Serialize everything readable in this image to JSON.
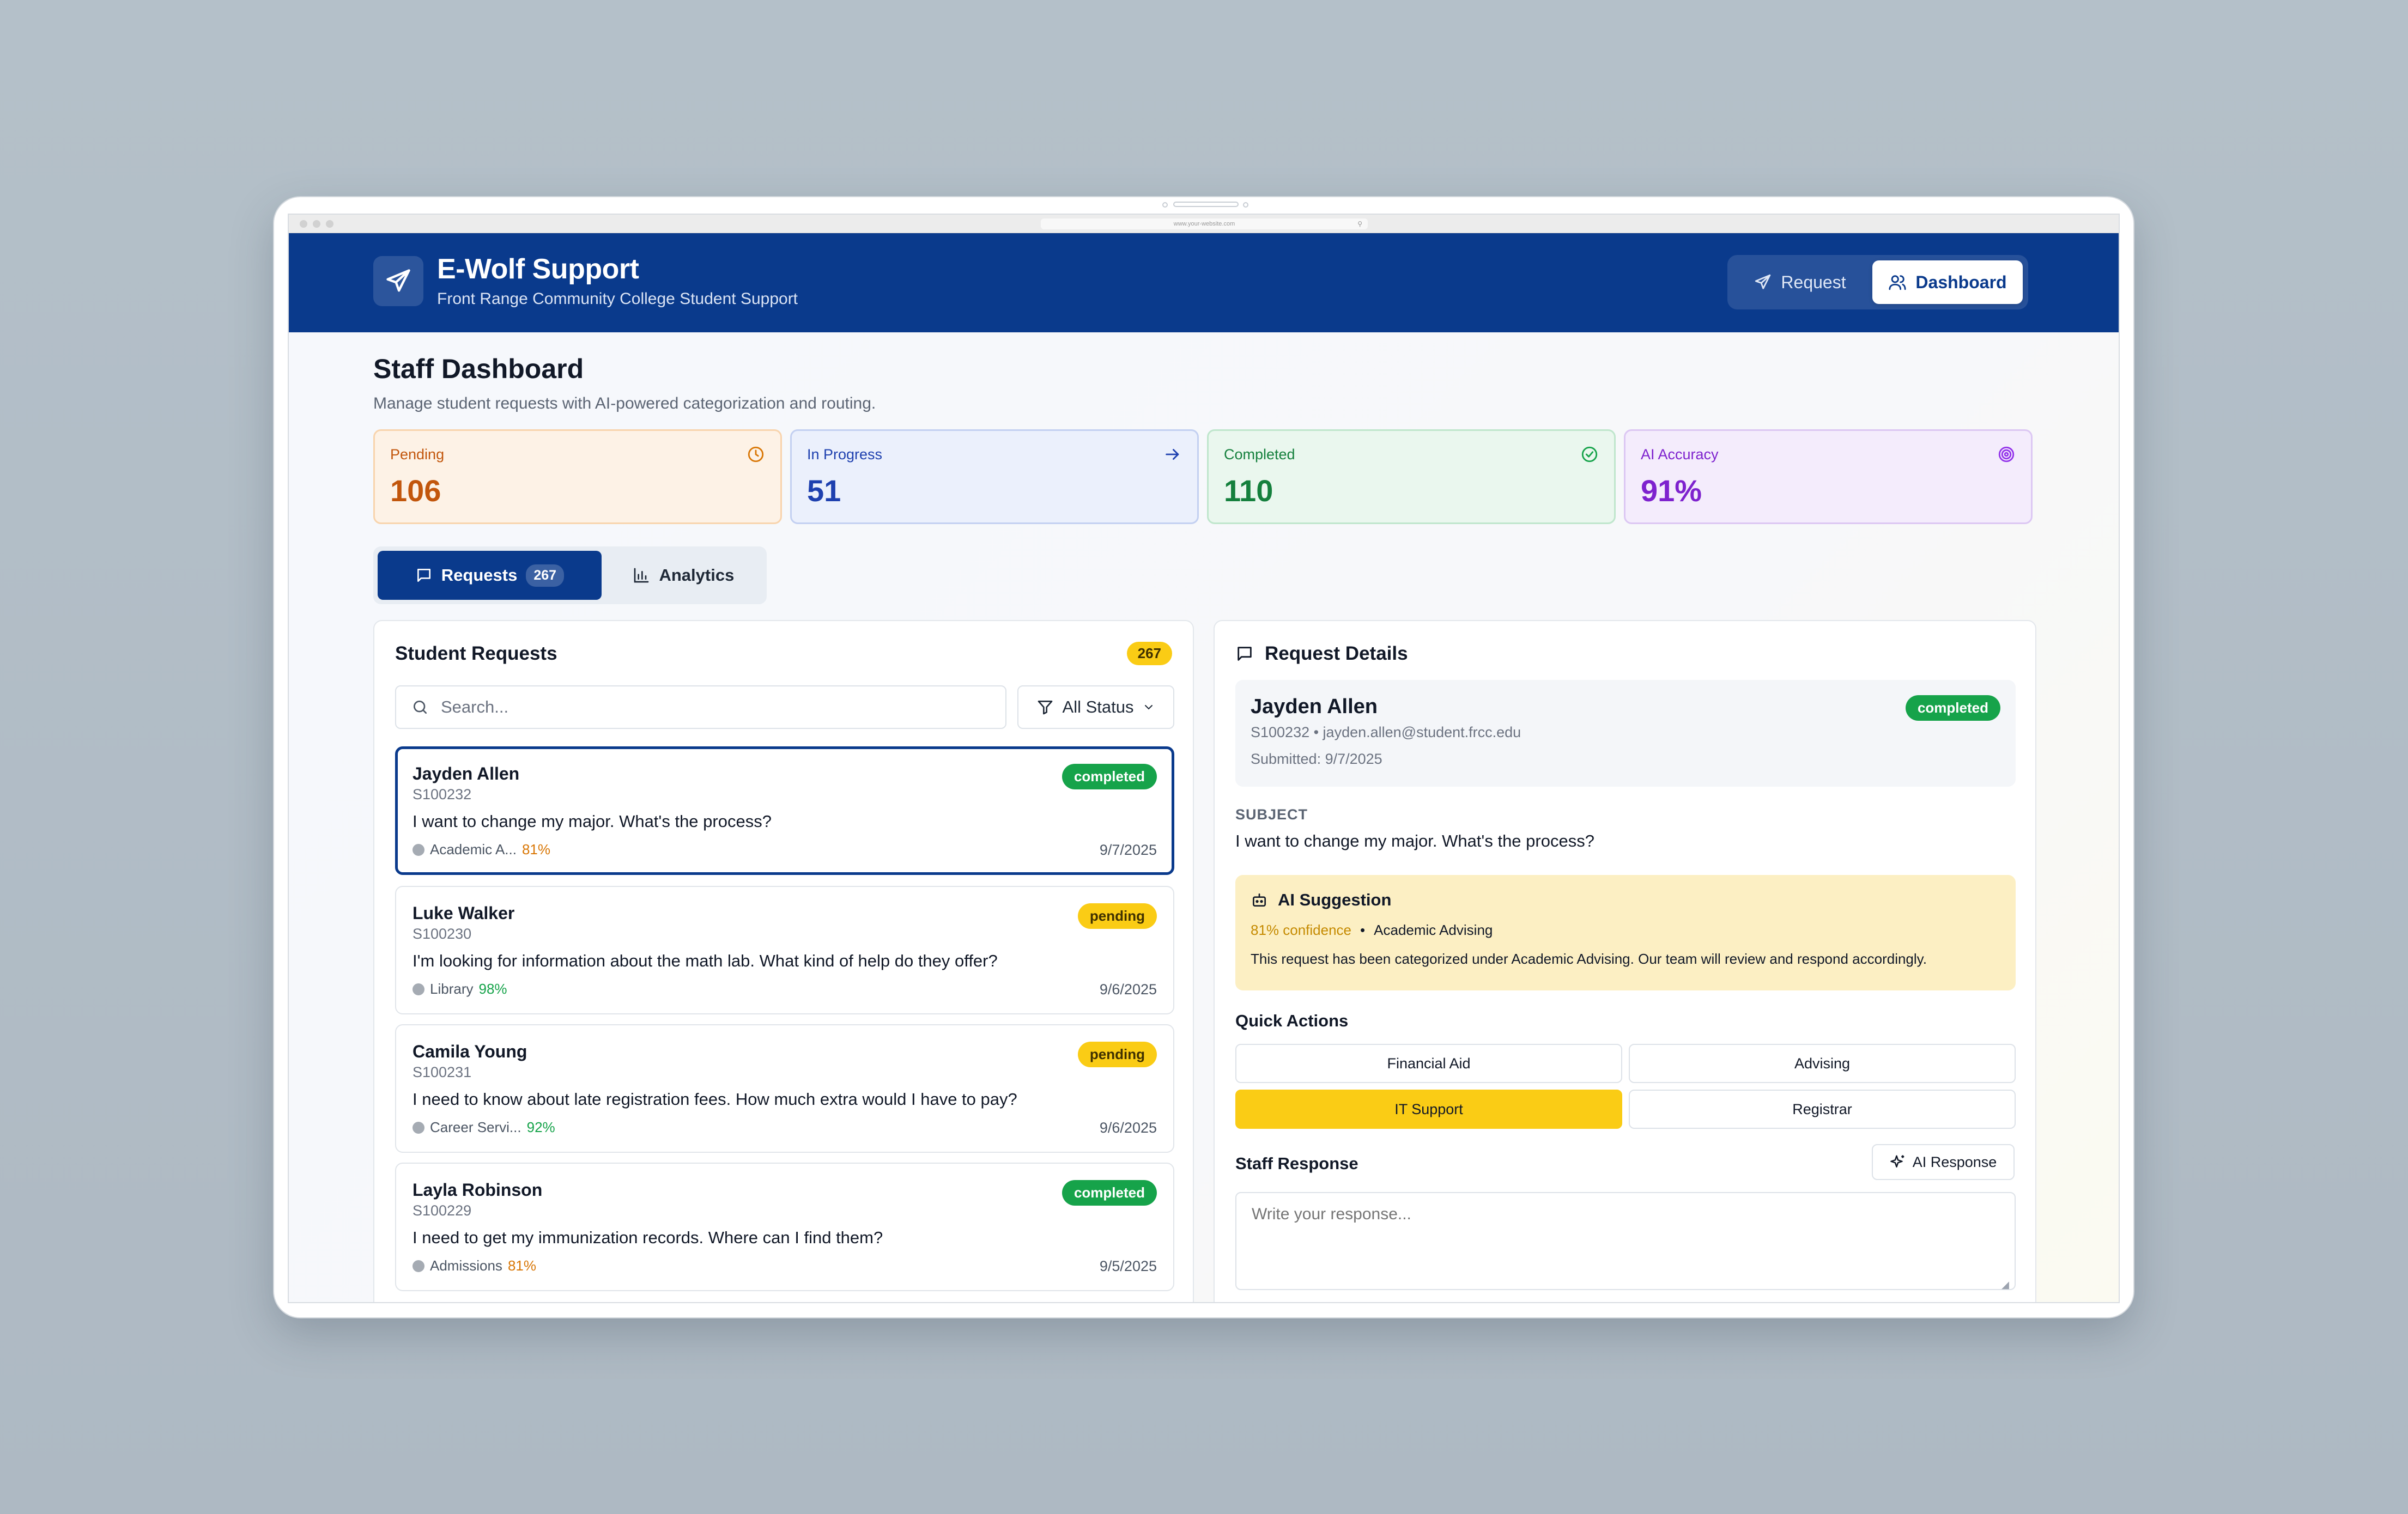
{
  "browser": {
    "url": "www.your-website.com"
  },
  "header": {
    "title": "E-Wolf Support",
    "subtitle": "Front Range Community College Student Support",
    "nav": {
      "request_label": "Request",
      "dashboard_label": "Dashboard"
    }
  },
  "page": {
    "title": "Staff Dashboard",
    "subtitle": "Manage student requests with AI-powered categorization and routing."
  },
  "stats": [
    {
      "label": "Pending",
      "value": "106",
      "icon": "clock-icon",
      "color": "#c2560c"
    },
    {
      "label": "In Progress",
      "value": "51",
      "icon": "arrow-right-icon",
      "color": "#1e40af"
    },
    {
      "label": "Completed",
      "value": "110",
      "icon": "check-circle-icon",
      "color": "#15803d"
    },
    {
      "label": "AI Accuracy",
      "value": "91%",
      "icon": "target-icon",
      "color": "#7e22ce"
    }
  ],
  "tabs": {
    "requests_label": "Requests",
    "requests_count": "267",
    "analytics_label": "Analytics"
  },
  "requests_panel": {
    "title": "Student Requests",
    "count": "267",
    "search_placeholder": "Search...",
    "filter_label": "All Status",
    "items": [
      {
        "name": "Jayden Allen",
        "id": "S100232",
        "subject": "I want to change my major. What's the process?",
        "category": "Academic A...",
        "confidence": "81%",
        "confidence_color": "#d97706",
        "date": "9/7/2025",
        "status": "completed"
      },
      {
        "name": "Luke Walker",
        "id": "S100230",
        "subject": "I'm looking for information about the math lab. What kind of help do they offer?",
        "category": "Library",
        "confidence": "98%",
        "confidence_color": "#16a34a",
        "date": "9/6/2025",
        "status": "pending"
      },
      {
        "name": "Camila Young",
        "id": "S100231",
        "subject": "I need to know about late registration fees. How much extra would I have to pay?",
        "category": "Career Servi...",
        "confidence": "92%",
        "confidence_color": "#16a34a",
        "date": "9/6/2025",
        "status": "pending"
      },
      {
        "name": "Layla Robinson",
        "id": "S100229",
        "subject": "I need to get my immunization records. Where can I find them?",
        "category": "Admissions",
        "confidence": "81%",
        "confidence_color": "#d97706",
        "date": "9/5/2025",
        "status": "completed"
      }
    ]
  },
  "details": {
    "title": "Request Details",
    "student_name": "Jayden Allen",
    "student_info": "S100232 • jayden.allen@student.frcc.edu",
    "submitted": "Submitted: 9/7/2025",
    "status": "completed",
    "subject_label": "SUBJECT",
    "subject": "I want to change my major. What's the process?",
    "ai": {
      "title": "AI Suggestion",
      "confidence": "81% confidence",
      "separator": "•",
      "category": "Academic Advising",
      "text": "This request has been categorized under Academic Advising. Our team will review and respond accordingly."
    },
    "quick_actions": {
      "title": "Quick Actions",
      "buttons": [
        "Financial Aid",
        "Advising",
        "IT Support",
        "Registrar"
      ]
    },
    "staff_response": {
      "title": "Staff Response",
      "ai_button": "AI Response",
      "placeholder": "Write your response..."
    }
  }
}
